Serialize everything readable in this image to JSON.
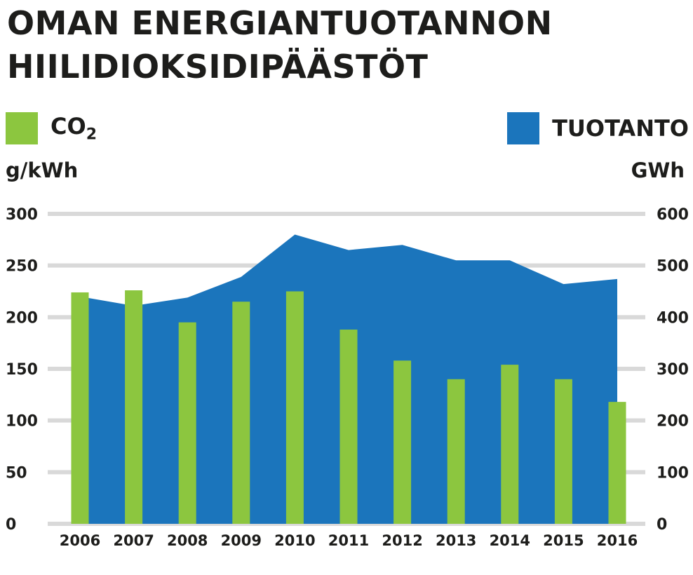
{
  "header": {
    "title_line1": "OMAN ENERGIANTUOTANNON",
    "title_line2": "HIILIDIOKSIDIPÄÄSTÖT"
  },
  "legend": {
    "co2": {
      "label_main": "CO",
      "label_sub": "2",
      "color": "#8cc63f"
    },
    "production": {
      "label": "TUOTANTO",
      "color": "#1b75bc"
    }
  },
  "units": {
    "left": "g/kWh",
    "right": "GWh"
  },
  "colors": {
    "grid": "#d9d9d9",
    "text": "#1d1d1b"
  },
  "chart_data": {
    "type": "bar+area",
    "title": "OMAN ENERGIANTUOTANNON HIILIDIOKSIDIPÄÄSTÖT",
    "categories": [
      "2006",
      "2007",
      "2008",
      "2009",
      "2010",
      "2011",
      "2012",
      "2013",
      "2014",
      "2015",
      "2016"
    ],
    "series": [
      {
        "name": "CO2",
        "type": "bar",
        "axis": "left",
        "unit": "g/kWh",
        "values": [
          224,
          226,
          195,
          215,
          225,
          188,
          158,
          140,
          154,
          140,
          118
        ]
      },
      {
        "name": "TUOTANTO",
        "type": "area",
        "axis": "right",
        "unit": "GWh",
        "values": [
          440,
          422,
          438,
          478,
          560,
          530,
          540,
          510,
          510,
          464,
          474
        ]
      }
    ],
    "left_axis": {
      "label": "g/kWh",
      "ylim": [
        0,
        300
      ],
      "ticks": [
        0,
        50,
        100,
        150,
        200,
        250,
        300
      ]
    },
    "right_axis": {
      "label": "GWh",
      "ylim": [
        0,
        600
      ],
      "ticks": [
        0,
        100,
        200,
        300,
        400,
        500,
        600
      ]
    },
    "grid": true
  }
}
